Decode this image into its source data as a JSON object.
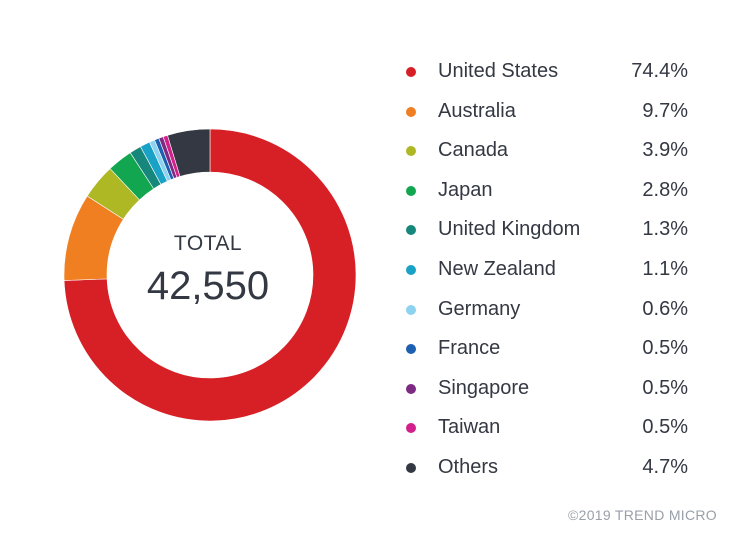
{
  "chart_data": {
    "type": "pie",
    "center_label": "TOTAL",
    "center_value": "42,550",
    "slices": [
      {
        "name": "United States",
        "value": 74.4,
        "label": "74.4%",
        "color": "#d71f26"
      },
      {
        "name": "Australia",
        "value": 9.7,
        "label": "9.7%",
        "color": "#f07f22"
      },
      {
        "name": "Canada",
        "value": 3.9,
        "label": "3.9%",
        "color": "#aeb825"
      },
      {
        "name": "Japan",
        "value": 2.8,
        "label": "2.8%",
        "color": "#12a650"
      },
      {
        "name": "United Kingdom",
        "value": 1.3,
        "label": "1.3%",
        "color": "#16877a"
      },
      {
        "name": "New Zealand",
        "value": 1.1,
        "label": "1.1%",
        "color": "#1aa2c6"
      },
      {
        "name": "Germany",
        "value": 0.6,
        "label": "0.6%",
        "color": "#8dd2ef"
      },
      {
        "name": "France",
        "value": 0.5,
        "label": "0.5%",
        "color": "#1d5fb0"
      },
      {
        "name": "Singapore",
        "value": 0.5,
        "label": "0.5%",
        "color": "#7d2a83"
      },
      {
        "name": "Taiwan",
        "value": 0.5,
        "label": "0.5%",
        "color": "#d21f8c"
      },
      {
        "name": "Others",
        "value": 4.7,
        "label": "4.7%",
        "color": "#333842"
      }
    ],
    "legend_position": "right"
  },
  "footer": {
    "copyright": "©2019 TREND MICRO"
  }
}
